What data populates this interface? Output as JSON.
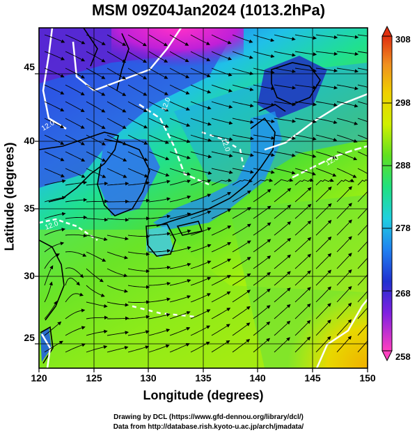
{
  "title": "MSM 09Z04Jan2024 (1013.2hPa)",
  "xlabel": "Longitude (degrees)",
  "ylabel": "Latitude  (degrees)",
  "x_ticks": [
    "120",
    "125",
    "130",
    "135",
    "140",
    "145",
    "150"
  ],
  "y_ticks": [
    "25",
    "30",
    "35",
    "40",
    "45"
  ],
  "colorbar": {
    "ticks": [
      "308",
      "298",
      "288",
      "278",
      "268",
      "258"
    ],
    "min": 258,
    "max": 308
  },
  "contour_labels": [
    "12.0",
    "12.0",
    "12.0",
    "12.0",
    "12.0"
  ],
  "credits": {
    "line1": "Drawing by DCL (https://www.gfd-dennou.org/library/dcl/)",
    "line2": "Data from http://database.rish.kyoto-u.ac.jp/arch/jmadata/"
  },
  "chart_data": {
    "type": "heatmap",
    "title": "MSM 09Z04Jan2024 (1013.2hPa)",
    "xlabel": "Longitude (degrees)",
    "ylabel": "Latitude  (degrees)",
    "xlim": [
      120,
      150
    ],
    "ylim": [
      22.4,
      47.6
    ],
    "variable_range": [
      258,
      308
    ],
    "overlay": "wind streamlines",
    "colormap": [
      "#ff40c0",
      "#8020e0",
      "#2030d0",
      "#2080f0",
      "#20d0e0",
      "#20e080",
      "#60e020",
      "#d0f000",
      "#f0d000",
      "#f09020",
      "#e03010"
    ]
  }
}
